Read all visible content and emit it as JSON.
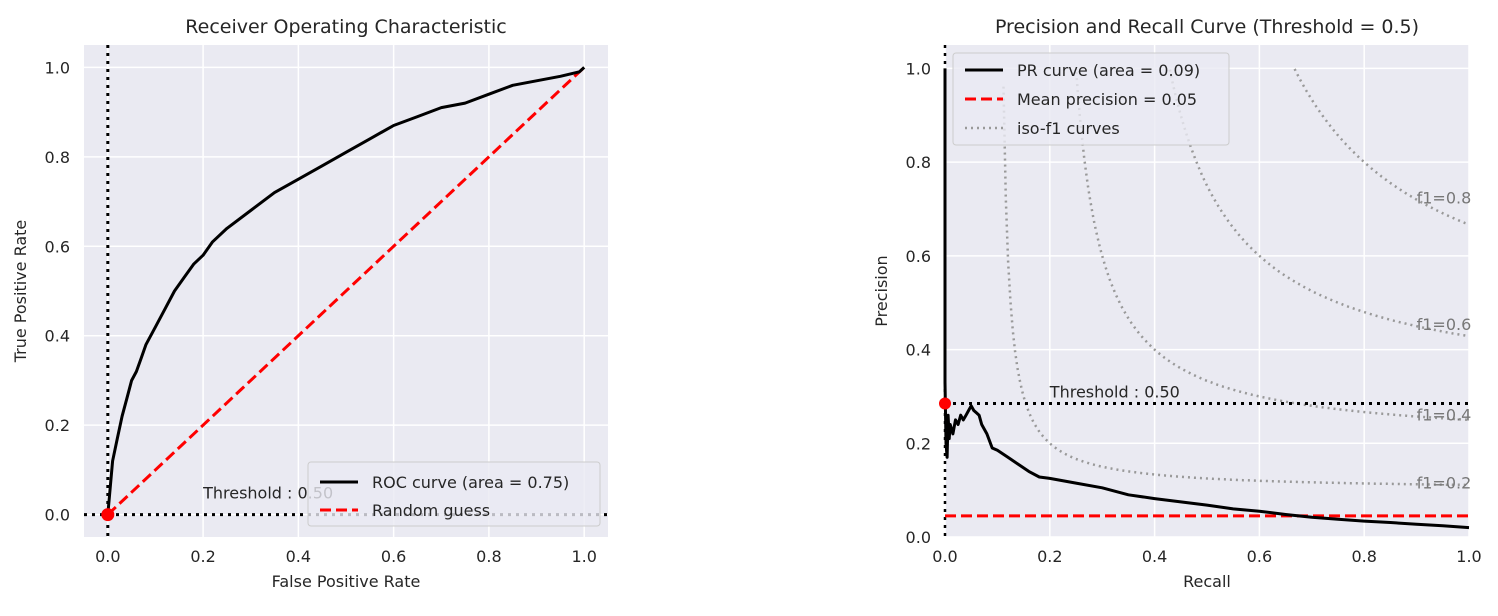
{
  "chart_data": [
    {
      "type": "line",
      "title": "Receiver Operating Characteristic",
      "xlabel": "False Positive Rate",
      "ylabel": "True Positive Rate",
      "xlim": [
        -0.05,
        1.05
      ],
      "ylim": [
        -0.05,
        1.05
      ],
      "xticks": [
        0.0,
        0.2,
        0.4,
        0.6,
        0.8,
        1.0
      ],
      "yticks": [
        0.0,
        0.2,
        0.4,
        0.6,
        0.8,
        1.0
      ],
      "xtick_labels": [
        "0.0",
        "0.2",
        "0.4",
        "0.6",
        "0.8",
        "1.0"
      ],
      "ytick_labels": [
        "0.0",
        "0.2",
        "0.4",
        "0.6",
        "0.8",
        "1.0"
      ],
      "grid": true,
      "legend_position": "lower-right",
      "series": [
        {
          "name": "ROC curve (area = 0.75)",
          "color": "#000000",
          "style": "solid",
          "x": [
            0.0,
            0.005,
            0.01,
            0.02,
            0.03,
            0.04,
            0.05,
            0.06,
            0.07,
            0.08,
            0.1,
            0.12,
            0.14,
            0.16,
            0.18,
            0.2,
            0.22,
            0.25,
            0.3,
            0.35,
            0.4,
            0.45,
            0.5,
            0.55,
            0.6,
            0.65,
            0.7,
            0.75,
            0.8,
            0.85,
            0.9,
            0.95,
            0.99,
            1.0
          ],
          "y": [
            0.0,
            0.06,
            0.12,
            0.17,
            0.22,
            0.26,
            0.3,
            0.32,
            0.35,
            0.38,
            0.42,
            0.46,
            0.5,
            0.53,
            0.56,
            0.58,
            0.61,
            0.64,
            0.68,
            0.72,
            0.75,
            0.78,
            0.81,
            0.84,
            0.87,
            0.89,
            0.91,
            0.92,
            0.94,
            0.96,
            0.97,
            0.98,
            0.99,
            1.0
          ]
        },
        {
          "name": "Random guess",
          "color": "#ff0000",
          "style": "dashed",
          "x": [
            0.0,
            1.0
          ],
          "y": [
            0.0,
            1.0
          ]
        }
      ],
      "threshold": {
        "label": "Threshold : 0.50",
        "x": 0.0,
        "y": 0.0,
        "label_x": 0.2,
        "label_y": 0.05
      }
    },
    {
      "type": "line",
      "title": "Precision and Recall Curve (Threshold = 0.5)",
      "xlabel": "Recall",
      "ylabel": "Precision",
      "xlim": [
        0.0,
        1.0
      ],
      "ylim": [
        0.0,
        1.05
      ],
      "xticks": [
        0.0,
        0.2,
        0.4,
        0.6,
        0.8,
        1.0
      ],
      "yticks": [
        0.0,
        0.2,
        0.4,
        0.6,
        0.8,
        1.0
      ],
      "xtick_labels": [
        "0.0",
        "0.2",
        "0.4",
        "0.6",
        "0.8",
        "1.0"
      ],
      "ytick_labels": [
        "0.0",
        "0.2",
        "0.4",
        "0.6",
        "0.8",
        "1.0"
      ],
      "grid": true,
      "legend_position": "upper-left",
      "series": [
        {
          "name": "PR curve (area = 0.09)",
          "color": "#000000",
          "style": "solid",
          "x": [
            0.0,
            0.0,
            0.0,
            0.002,
            0.004,
            0.006,
            0.008,
            0.01,
            0.015,
            0.02,
            0.025,
            0.03,
            0.035,
            0.04,
            0.045,
            0.05,
            0.055,
            0.06,
            0.065,
            0.07,
            0.08,
            0.09,
            0.1,
            0.12,
            0.14,
            0.16,
            0.18,
            0.2,
            0.25,
            0.3,
            0.35,
            0.4,
            0.45,
            0.5,
            0.55,
            0.6,
            0.65,
            0.7,
            0.75,
            0.8,
            0.85,
            0.9,
            0.95,
            1.0
          ],
          "y": [
            1.0,
            0.6,
            0.33,
            0.2,
            0.17,
            0.26,
            0.21,
            0.24,
            0.22,
            0.25,
            0.24,
            0.26,
            0.25,
            0.26,
            0.27,
            0.28,
            0.27,
            0.265,
            0.26,
            0.24,
            0.22,
            0.19,
            0.185,
            0.17,
            0.155,
            0.14,
            0.128,
            0.125,
            0.115,
            0.105,
            0.09,
            0.082,
            0.075,
            0.068,
            0.06,
            0.055,
            0.048,
            0.042,
            0.038,
            0.034,
            0.031,
            0.027,
            0.024,
            0.02
          ]
        },
        {
          "name": "Mean precision = 0.05",
          "color": "#ff0000",
          "style": "dashed",
          "x": [
            0.0,
            1.0
          ],
          "y": [
            0.045,
            0.045
          ]
        },
        {
          "name": "iso-f1 curves",
          "color": "#999999",
          "style": "dotted",
          "f1_values": [
            0.2,
            0.4,
            0.6,
            0.8
          ]
        }
      ],
      "f1_labels": [
        "f1=0.2",
        "f1=0.4",
        "f1=0.6",
        "f1=0.8"
      ],
      "threshold": {
        "label": "Threshold : 0.50",
        "x": 0.0,
        "y": 0.285,
        "label_x": 0.2,
        "label_y": 0.31
      }
    }
  ]
}
